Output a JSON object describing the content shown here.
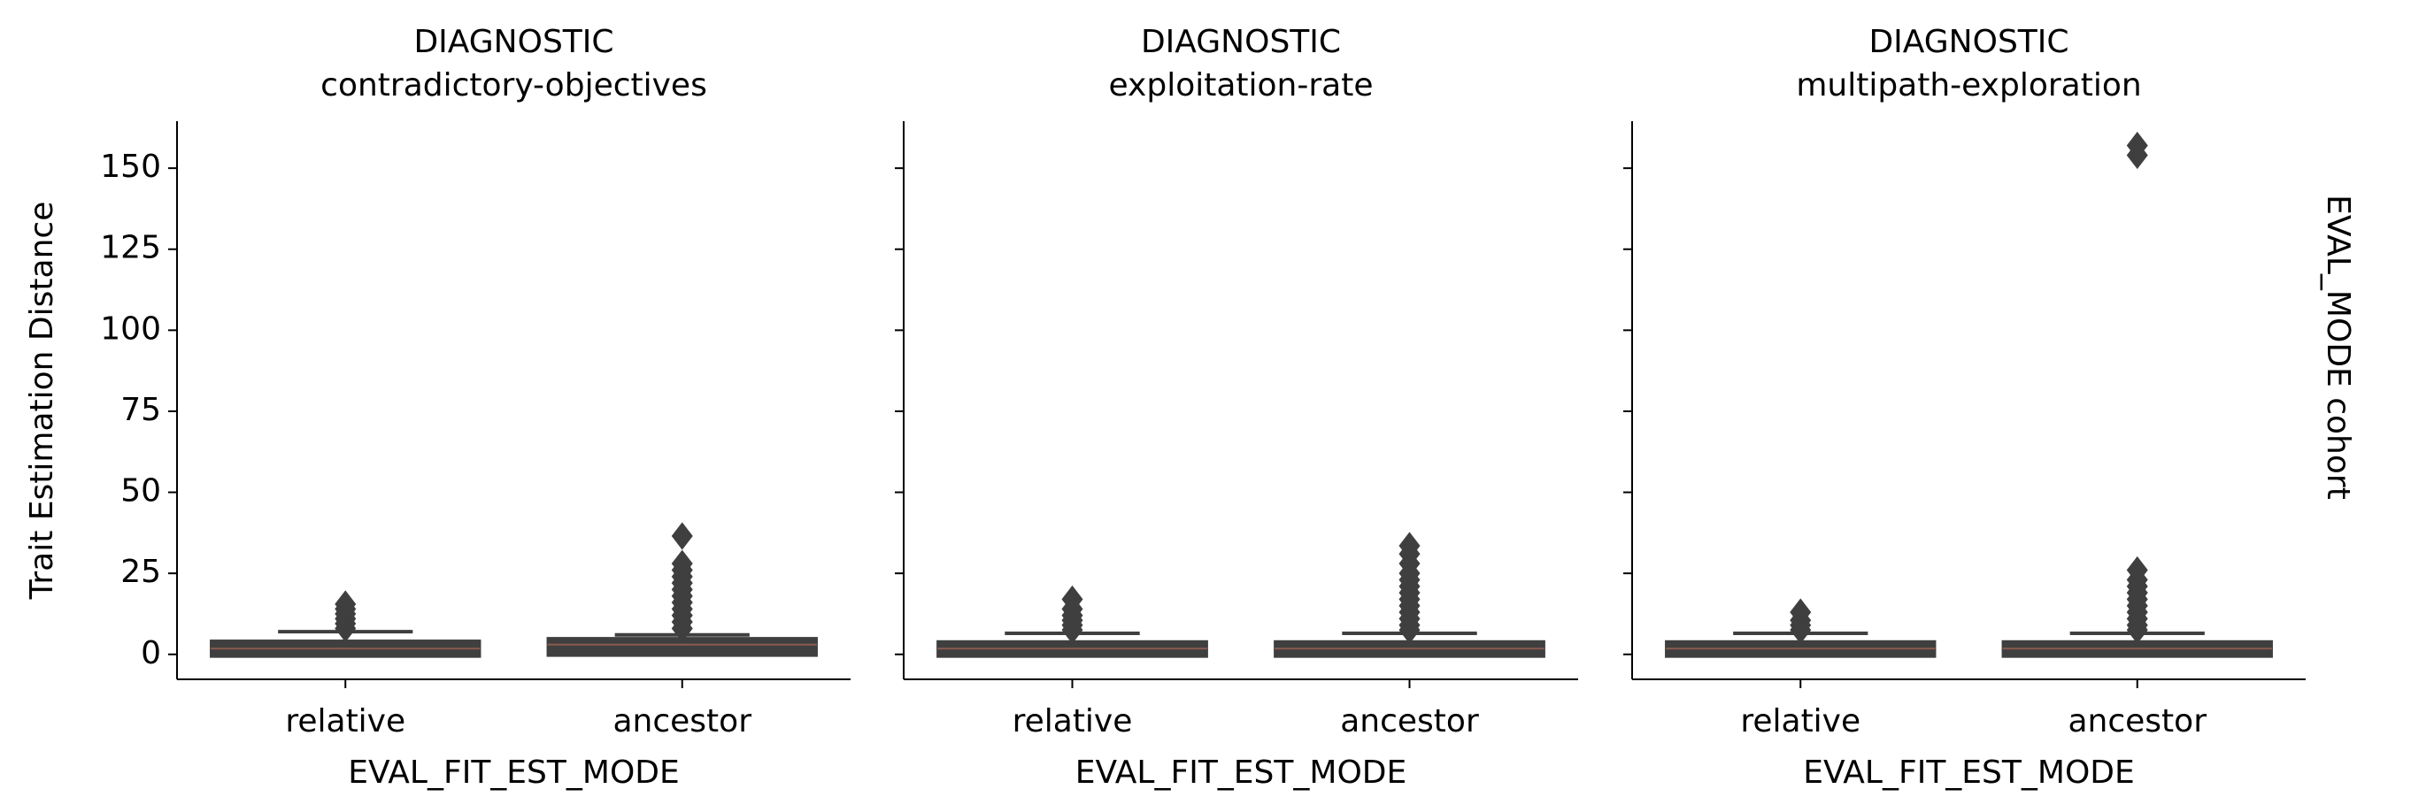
{
  "chart_data": [
    {
      "type": "box",
      "title": "DIAGNOSTIC",
      "subtitle": "contradictory-objectives",
      "x_label": "EVAL_FIT_EST_MODE",
      "y_label": "Trait Estimation Distance",
      "categories": [
        "relative",
        "ancestor"
      ],
      "color": "#3f3f3f",
      "ylim": [
        -7.7,
        164.5
      ],
      "yticks": [
        0,
        25,
        50,
        75,
        100,
        125,
        150
      ],
      "boxes": [
        {
          "whislo": 0,
          "q1": 0.3,
          "median": 1.8,
          "q3": 3.2,
          "whishi": 7,
          "outliers": [
            8,
            9.5,
            11,
            12.5,
            14,
            15.5
          ]
        },
        {
          "whislo": 0,
          "q1": 0.6,
          "median": 3,
          "q3": 4,
          "whishi": 6,
          "outliers": [
            8,
            10,
            12,
            14,
            16,
            18,
            20,
            22,
            24,
            26,
            28,
            36.5
          ]
        }
      ]
    },
    {
      "type": "box",
      "title": "DIAGNOSTIC",
      "subtitle": "exploitation-rate",
      "x_label": "EVAL_FIT_EST_MODE",
      "categories": [
        "relative",
        "ancestor"
      ],
      "color": "#3f3f3f",
      "ylim": [
        -7.7,
        164.5
      ],
      "yticks": [
        0,
        25,
        50,
        75,
        100,
        125,
        150
      ],
      "boxes": [
        {
          "whislo": 0,
          "q1": 0.3,
          "median": 1.8,
          "q3": 3,
          "whishi": 6.5,
          "outliers": [
            7.5,
            9,
            10.5,
            12,
            14,
            17
          ]
        },
        {
          "whislo": 0,
          "q1": 0.3,
          "median": 1.8,
          "q3": 3,
          "whishi": 6.5,
          "outliers": [
            7.5,
            9,
            11,
            13,
            15,
            17,
            19,
            21,
            23,
            25,
            28,
            31,
            33.5
          ]
        }
      ]
    },
    {
      "type": "box",
      "title": "DIAGNOSTIC",
      "subtitle": "multipath-exploration",
      "x_label": "EVAL_FIT_EST_MODE",
      "row_label": "EVAL_MODE cohort",
      "categories": [
        "relative",
        "ancestor"
      ],
      "color": "#3f3f3f",
      "ylim": [
        -7.7,
        164.5
      ],
      "yticks": [
        0,
        25,
        50,
        75,
        100,
        125,
        150
      ],
      "boxes": [
        {
          "whislo": 0,
          "q1": 0.3,
          "median": 1.8,
          "q3": 3,
          "whishi": 6.5,
          "outliers": [
            7.5,
            9,
            10.5,
            13
          ]
        },
        {
          "whislo": 0,
          "q1": 0.3,
          "median": 1.8,
          "q3": 3,
          "whishi": 6.5,
          "outliers": [
            7.5,
            9,
            11,
            13,
            15,
            17,
            19,
            21,
            23,
            26,
            154,
            157
          ]
        }
      ]
    }
  ]
}
